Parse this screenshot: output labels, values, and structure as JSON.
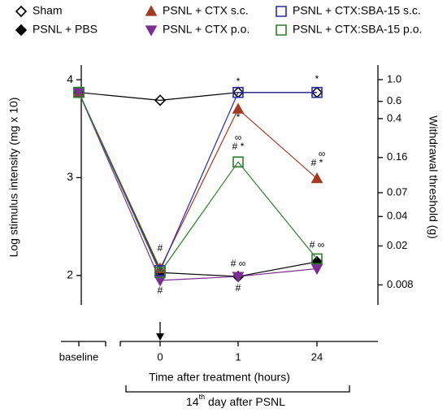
{
  "chart_data": {
    "type": "line",
    "ylabel": "Log stimulus intensity (mg x 10)",
    "y2label": "Withdrawal threshold (g)",
    "xlabel": "Time after treatment (hours)",
    "bracket_label": [
      "14",
      "th",
      " day after PSNL"
    ],
    "categories": [
      "baseline",
      "0",
      "1",
      "24"
    ],
    "ylim": [
      1.7,
      4.15
    ],
    "yticks": [
      2,
      3,
      4
    ],
    "y2lim": [
      0.005,
      1.41
    ],
    "y2scale": "log",
    "y2ticks": [
      {
        "value": 1.0,
        "label": "1.0"
      },
      0.6,
      0.4,
      0.16,
      0.07,
      0.04,
      0.02,
      0.008
    ],
    "series": [
      {
        "name": "Sham",
        "color": "#000000",
        "marker": "diamond-open",
        "values": [
          3.87,
          3.79,
          3.87,
          3.87
        ]
      },
      {
        "name": "PSNL + PBS",
        "color": "#000000",
        "marker": "diamond",
        "values": [
          3.87,
          2.03,
          1.99,
          2.14
        ]
      },
      {
        "name": "PSNL + CTX s.c.",
        "color": "#a33a22",
        "marker": "triangle",
        "values": [
          3.87,
          2.07,
          3.7,
          2.99
        ]
      },
      {
        "name": "PSNL + CTX p.o.",
        "color": "#7a2f93",
        "marker": "triangle-down",
        "values": [
          3.87,
          1.95,
          1.99,
          2.07
        ]
      },
      {
        "name": "PSNL + CTX:SBA-15 s.c.",
        "color": "#2a2aa0",
        "marker": "square-open",
        "values": [
          3.87,
          2.05,
          3.87,
          3.87
        ]
      },
      {
        "name": "PSNL + CTX:SBA-15 p.o.",
        "color": "#2f7d2f",
        "marker": "square-open",
        "values": [
          3.87,
          2.03,
          3.16,
          2.17
        ]
      }
    ],
    "annotations": [
      "#",
      "#",
      "# ∞",
      "#",
      "*",
      "*",
      "∞",
      "# *",
      "*",
      "∞",
      "# *",
      "# ∞"
    ]
  }
}
